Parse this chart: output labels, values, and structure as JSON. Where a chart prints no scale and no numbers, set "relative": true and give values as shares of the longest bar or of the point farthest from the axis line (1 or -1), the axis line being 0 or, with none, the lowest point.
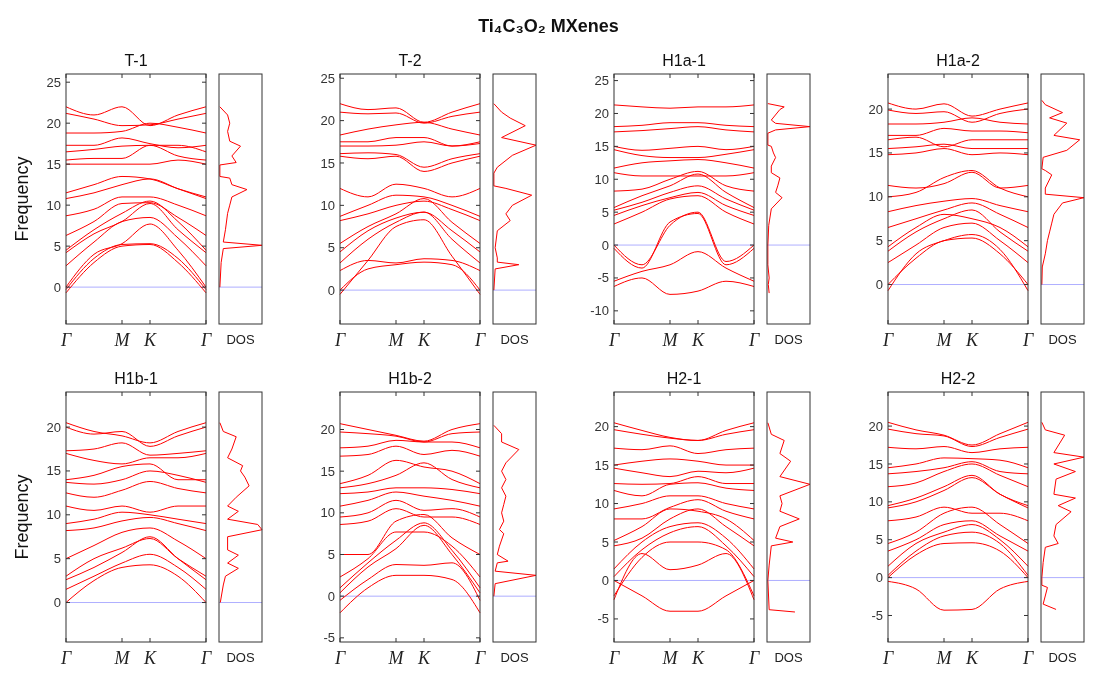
{
  "chart_data": [
    {
      "type": "line",
      "title": "T-1",
      "ylabel": "Frequency",
      "annotations": [
        "Ti₄C₃O₂ MXenes"
      ],
      "color": "#ff0000",
      "categories": [
        "Γ",
        null,
        "M",
        "K",
        null,
        "Γ"
      ],
      "ylim": [
        -4.5,
        26
      ],
      "yticks": [
        0,
        5,
        10,
        15,
        20,
        25
      ],
      "ref_lines": [
        {
          "axis": "y",
          "value": 0,
          "color": "#9999ff"
        }
      ],
      "series": [
        {
          "values": [
            -0.7,
            3,
            5,
            5.2,
            3,
            -0.7
          ]
        },
        {
          "values": [
            -0.3,
            3.5,
            5.2,
            5.3,
            3.5,
            -0.3
          ]
        },
        {
          "values": [
            0,
            4,
            5.3,
            7.7,
            4.5,
            0
          ]
        },
        {
          "values": [
            2.6,
            5.5,
            8,
            8.5,
            6,
            2.6
          ]
        },
        {
          "values": [
            4.2,
            6.5,
            8,
            10.2,
            7,
            4.2
          ]
        },
        {
          "values": [
            4.5,
            7,
            9,
            10.5,
            8,
            4.5
          ]
        },
        {
          "values": [
            6.3,
            8,
            10.2,
            10.3,
            8.5,
            6.3
          ]
        },
        {
          "values": [
            8.7,
            9.5,
            11,
            11,
            10,
            8.7
          ]
        },
        {
          "values": [
            10.8,
            11.5,
            12.5,
            13.2,
            12,
            10.8
          ]
        },
        {
          "values": [
            11.5,
            12.5,
            13.5,
            13.2,
            12,
            11
          ]
        },
        {
          "values": [
            15,
            15,
            15,
            15,
            15.5,
            15
          ]
        },
        {
          "values": [
            15.5,
            15.7,
            15.7,
            17.3,
            16,
            15.5
          ]
        },
        {
          "values": [
            16.5,
            16.8,
            17.2,
            17.3,
            17.3,
            16.5
          ]
        },
        {
          "values": [
            17.3,
            17.3,
            18.2,
            17.5,
            17,
            17.3
          ]
        },
        {
          "values": [
            18.8,
            18.8,
            19,
            20,
            19.5,
            18.8
          ]
        },
        {
          "values": [
            21.2,
            20.5,
            19.7,
            19.8,
            20.5,
            21.2
          ]
        },
        {
          "values": [
            22,
            21,
            22,
            19.7,
            21,
            22
          ]
        }
      ]
    },
    {
      "type": "line",
      "orientation": "horizontal",
      "relative": true,
      "xlabel": "DOS",
      "color": "#ff0000",
      "ylim": [
        -4.5,
        26
      ],
      "ref_lines": [
        {
          "axis": "y",
          "value": 0,
          "color": "#9999ff"
        }
      ],
      "x": [
        0,
        3,
        4.7,
        5.1,
        5.5,
        7,
        9,
        10,
        11,
        11.9,
        12.5,
        13.3,
        13.5,
        14.9,
        15.2,
        16,
        17.2,
        17.8,
        19,
        20,
        21,
        22
      ],
      "values": [
        0.02,
        0.05,
        0.1,
        1,
        0.1,
        0.15,
        0.2,
        0.25,
        0.3,
        0.65,
        0.3,
        0.25,
        0.02,
        0.02,
        0.4,
        0.3,
        0.5,
        0.25,
        0.2,
        0.25,
        0.2,
        0.02
      ]
    },
    {
      "type": "line",
      "title": "T-2",
      "color": "#ff0000",
      "categories": [
        "Γ",
        null,
        "M",
        "K",
        null,
        "Γ"
      ],
      "ylim": [
        -4,
        25.5
      ],
      "yticks": [
        0,
        5,
        10,
        15,
        20,
        25
      ],
      "ref_lines": [
        {
          "axis": "y",
          "value": 0,
          "color": "#9999ff"
        }
      ],
      "series": [
        {
          "values": [
            0,
            2.5,
            3,
            3.3,
            3,
            0
          ]
        },
        {
          "values": [
            2.3,
            3.5,
            3.2,
            3.7,
            3.5,
            2.3
          ]
        },
        {
          "values": [
            -0.5,
            3.5,
            7.5,
            8.3,
            4,
            -0.5
          ]
        },
        {
          "values": [
            3.2,
            6,
            8,
            9.2,
            6,
            3.2
          ]
        },
        {
          "values": [
            4.5,
            7,
            8.5,
            9.2,
            7,
            4.5
          ]
        },
        {
          "values": [
            5.5,
            7.5,
            9,
            10.8,
            8,
            5.5
          ]
        },
        {
          "values": [
            8.2,
            9,
            10,
            10.5,
            9.5,
            8.2
          ]
        },
        {
          "values": [
            8.7,
            10,
            11.2,
            11,
            10,
            8.7
          ]
        },
        {
          "values": [
            12,
            11,
            12.5,
            12,
            11,
            12
          ]
        },
        {
          "values": [
            15.8,
            15.5,
            15.8,
            14,
            15,
            15.8
          ]
        },
        {
          "values": [
            16.1,
            16.2,
            16,
            14.5,
            15.5,
            16.1
          ]
        },
        {
          "values": [
            17,
            17,
            17.1,
            17.5,
            17,
            17.3
          ]
        },
        {
          "values": [
            17.5,
            17.5,
            18,
            18,
            17,
            17.5
          ]
        },
        {
          "values": [
            18.3,
            19,
            19.5,
            19.8,
            19,
            18.3
          ]
        },
        {
          "values": [
            21,
            20.8,
            20.9,
            19.7,
            20.5,
            21
          ]
        },
        {
          "values": [
            22,
            21.3,
            21.5,
            19.8,
            21,
            22
          ]
        }
      ]
    },
    {
      "type": "line",
      "orientation": "horizontal",
      "relative": true,
      "xlabel": "DOS",
      "color": "#ff0000",
      "ylim": [
        -4,
        25.5
      ],
      "ref_lines": [
        {
          "axis": "y",
          "value": 0,
          "color": "#9999ff"
        }
      ],
      "x": [
        0,
        2.5,
        3,
        3.3,
        3.8,
        5,
        7,
        8.2,
        9,
        10,
        11.2,
        12,
        12.3,
        13.8,
        14.5,
        15.9,
        17.1,
        18,
        19.4,
        20.3,
        21,
        22
      ],
      "values": [
        0.02,
        0.05,
        0.6,
        0.1,
        0.1,
        0.05,
        0.1,
        0.4,
        0.3,
        0.45,
        0.9,
        0.3,
        0.02,
        0.02,
        0.1,
        0.45,
        1,
        0.2,
        0.75,
        0.4,
        0.2,
        0.02
      ]
    },
    {
      "type": "line",
      "title": "H1a-1",
      "color": "#ff0000",
      "categories": [
        "Γ",
        null,
        "M",
        "K",
        null,
        "Γ"
      ],
      "ylim": [
        -12,
        26
      ],
      "yticks": [
        -10,
        -5,
        0,
        5,
        10,
        15,
        20,
        25
      ],
      "ref_lines": [
        {
          "axis": "y",
          "value": 0,
          "color": "#9999ff"
        }
      ],
      "series": [
        {
          "values": [
            -6.3,
            -5,
            -7.5,
            -7,
            -5.5,
            -6.3
          ]
        },
        {
          "values": [
            -5.5,
            -4,
            -3,
            -1,
            -3.5,
            -5.5
          ]
        },
        {
          "values": [
            0,
            -3,
            3,
            5,
            -2.5,
            0
          ]
        },
        {
          "values": [
            -0.5,
            -3.5,
            3.5,
            4.8,
            -3,
            -0.5
          ]
        },
        {
          "values": [
            3.2,
            5,
            7,
            7.5,
            5,
            3.2
          ]
        },
        {
          "values": [
            4.5,
            6,
            7.2,
            8,
            6,
            4.5
          ]
        },
        {
          "values": [
            5.3,
            6.5,
            8,
            9,
            7,
            5.3
          ]
        },
        {
          "values": [
            5.7,
            7.5,
            9,
            10.8,
            8,
            5.7
          ]
        },
        {
          "values": [
            8.2,
            8.5,
            10,
            11.2,
            9,
            8.2
          ]
        },
        {
          "values": [
            11,
            10.5,
            10.5,
            10.5,
            10.5,
            11
          ]
        },
        {
          "values": [
            11.7,
            12.5,
            12.8,
            13,
            12.5,
            11.7
          ]
        },
        {
          "values": [
            14.5,
            13.6,
            13.3,
            13.3,
            13.8,
            14.5
          ]
        },
        {
          "values": [
            15,
            14.4,
            14.7,
            15,
            14.5,
            15
          ]
        },
        {
          "values": [
            17.2,
            17.4,
            17.7,
            18,
            17.5,
            17.2
          ]
        },
        {
          "values": [
            18,
            18.2,
            18.6,
            18.6,
            18.2,
            18
          ]
        },
        {
          "values": [
            21.3,
            21,
            20.8,
            21,
            21,
            21.3
          ]
        }
      ]
    },
    {
      "type": "line",
      "orientation": "horizontal",
      "relative": true,
      "xlabel": "DOS",
      "color": "#ff0000",
      "ylim": [
        -12,
        26
      ],
      "ref_lines": [
        {
          "axis": "y",
          "value": 0,
          "color": "#9999ff"
        }
      ],
      "x": [
        -7.3,
        -6,
        -5,
        -3,
        0,
        3,
        5.5,
        7.2,
        8,
        9,
        10.2,
        11,
        12,
        13.3,
        14,
        15,
        15.2,
        17,
        17.5,
        18,
        18.5,
        19,
        20.6,
        21,
        21.5
      ],
      "values": [
        0.05,
        0.03,
        0.05,
        0.02,
        0.02,
        0.04,
        0.1,
        0.35,
        0.2,
        0.25,
        0.3,
        0.1,
        0.1,
        0.2,
        0.15,
        0.1,
        0.02,
        0.02,
        0.2,
        1,
        0.2,
        0.1,
        0.3,
        0.4,
        0.02
      ]
    },
    {
      "type": "line",
      "title": "H1a-2",
      "color": "#ff0000",
      "categories": [
        "Γ",
        null,
        "M",
        "K",
        null,
        "Γ"
      ],
      "ylim": [
        -4.5,
        24
      ],
      "yticks": [
        0,
        5,
        10,
        15,
        20
      ],
      "ref_lines": [
        {
          "axis": "y",
          "value": 0,
          "color": "#9999ff"
        }
      ],
      "series": [
        {
          "values": [
            0,
            3,
            5,
            5.3,
            3.5,
            0
          ]
        },
        {
          "values": [
            -0.7,
            3.5,
            5,
            5.7,
            4,
            -0.7
          ]
        },
        {
          "values": [
            2.5,
            4.5,
            6.5,
            7,
            5,
            2.5
          ]
        },
        {
          "values": [
            3.8,
            6,
            7.5,
            8.5,
            6,
            3.8
          ]
        },
        {
          "values": [
            4.3,
            6.5,
            8,
            7.5,
            6.5,
            4.3
          ]
        },
        {
          "values": [
            6.5,
            7.5,
            8.5,
            9.3,
            8,
            6.5
          ]
        },
        {
          "values": [
            8.3,
            9,
            9.5,
            9.8,
            9,
            8.3
          ]
        },
        {
          "values": [
            10,
            10.5,
            12.2,
            13,
            11,
            10
          ]
        },
        {
          "values": [
            11.3,
            11,
            11.5,
            12.8,
            11,
            11.3
          ]
        },
        {
          "values": [
            14.8,
            15,
            15.5,
            14.8,
            15,
            14.8
          ]
        },
        {
          "values": [
            15.5,
            15.7,
            16,
            15.5,
            15.5,
            15.5
          ]
        },
        {
          "values": [
            16.5,
            16.8,
            15.7,
            16.5,
            16.5,
            16.5
          ]
        },
        {
          "values": [
            17,
            17,
            17.8,
            17.5,
            17.5,
            17.3
          ]
        },
        {
          "values": [
            18.3,
            18.3,
            18.5,
            19,
            18.5,
            18.3
          ]
        },
        {
          "values": [
            19.9,
            19.5,
            19.7,
            18.5,
            19.5,
            20
          ]
        },
        {
          "values": [
            20.7,
            20,
            20.6,
            19.2,
            20,
            20.7
          ]
        }
      ]
    },
    {
      "type": "line",
      "orientation": "horizontal",
      "relative": true,
      "xlabel": "DOS",
      "color": "#ff0000",
      "ylim": [
        -4.5,
        24
      ],
      "ref_lines": [
        {
          "axis": "y",
          "value": 0,
          "color": "#9999ff"
        }
      ],
      "x": [
        0,
        2,
        3.5,
        5,
        6,
        7,
        8,
        9.3,
        9.9,
        10.3,
        11,
        12.5,
        13,
        13.2,
        14.5,
        15.3,
        16.5,
        17,
        18.4,
        19,
        19.6,
        20.5,
        21
      ],
      "values": [
        0.02,
        0.03,
        0.1,
        0.15,
        0.2,
        0.25,
        0.3,
        0.5,
        1,
        0.1,
        0.1,
        0.25,
        0.1,
        0.02,
        0.05,
        0.6,
        0.9,
        0.3,
        0.6,
        0.2,
        0.5,
        0.1,
        0.02
      ]
    },
    {
      "type": "line",
      "title": "H1b-1",
      "ylabel": "Frequency",
      "color": "#ff0000",
      "categories": [
        "Γ",
        null,
        "M",
        "K",
        null,
        "Γ"
      ],
      "ylim": [
        -4.5,
        24
      ],
      "yticks": [
        0,
        5,
        10,
        15,
        20
      ],
      "ref_lines": [
        {
          "axis": "y",
          "value": 0,
          "color": "#9999ff"
        }
      ],
      "series": [
        {
          "values": [
            0,
            2.5,
            4,
            4.3,
            3,
            0
          ]
        },
        {
          "values": [
            1.5,
            3,
            4.5,
            5.5,
            4,
            1.5
          ]
        },
        {
          "values": [
            2.6,
            4,
            5.7,
            7.5,
            5,
            2.6
          ]
        },
        {
          "values": [
            3,
            5,
            6.2,
            7.3,
            5,
            3
          ]
        },
        {
          "values": [
            5,
            6.5,
            8,
            8.5,
            7,
            5
          ]
        },
        {
          "values": [
            8.2,
            8.5,
            9.3,
            9.7,
            9,
            8.2
          ]
        },
        {
          "values": [
            9,
            9.5,
            10.3,
            10,
            9.5,
            9
          ]
        },
        {
          "values": [
            11,
            10.5,
            11,
            10.3,
            11,
            11
          ]
        },
        {
          "values": [
            12.5,
            12,
            12.8,
            13.8,
            13,
            12.5
          ]
        },
        {
          "values": [
            13.7,
            13.5,
            14,
            15,
            14.5,
            13.7
          ]
        },
        {
          "values": [
            14,
            14.5,
            15.5,
            15.8,
            14,
            14
          ]
        },
        {
          "values": [
            17,
            16.2,
            15.8,
            16.5,
            16.5,
            17
          ]
        },
        {
          "values": [
            17.3,
            17.5,
            18.2,
            16.8,
            17,
            17.3
          ]
        },
        {
          "values": [
            20,
            19.2,
            19.5,
            17.8,
            19,
            20
          ]
        },
        {
          "values": [
            20.5,
            19.5,
            19,
            18.2,
            19.5,
            20.5
          ]
        }
      ]
    },
    {
      "type": "line",
      "orientation": "horizontal",
      "relative": true,
      "xlabel": "DOS",
      "color": "#ff0000",
      "ylim": [
        -4.5,
        24
      ],
      "ref_lines": [
        {
          "axis": "y",
          "value": 0,
          "color": "#9999ff"
        }
      ],
      "x": [
        0,
        2,
        3,
        3.9,
        4.5,
        5.4,
        6,
        7.5,
        8.3,
        8.9,
        9.5,
        10.4,
        11,
        12,
        13.3,
        14.3,
        15,
        15.6,
        16.5,
        17.5,
        18.9,
        19.5,
        20.5
      ],
      "values": [
        0.03,
        0.1,
        0.15,
        0.45,
        0.2,
        0.45,
        0.2,
        0.2,
        1,
        0.9,
        0.2,
        0.45,
        0.2,
        0.4,
        0.7,
        0.6,
        0.5,
        0.55,
        0.2,
        0.3,
        0.4,
        0.1,
        0.02
      ]
    },
    {
      "type": "line",
      "title": "H1b-2",
      "color": "#ff0000",
      "categories": [
        "Γ",
        null,
        "M",
        "K",
        null,
        "Γ"
      ],
      "ylim": [
        -5.5,
        24.5
      ],
      "yticks": [
        -5,
        0,
        5,
        10,
        15,
        20
      ],
      "ref_lines": [
        {
          "axis": "y",
          "value": 0,
          "color": "#9999ff"
        }
      ],
      "series": [
        {
          "values": [
            -2,
            1,
            2.5,
            2.5,
            2,
            -2
          ]
        },
        {
          "values": [
            -0.5,
            2,
            3.8,
            3.7,
            4,
            -0.5
          ]
        },
        {
          "values": [
            0.4,
            3.5,
            5.7,
            8.5,
            5,
            0.4
          ]
        },
        {
          "values": [
            1,
            4,
            6.7,
            8.8,
            5.5,
            1
          ]
        },
        {
          "values": [
            2.3,
            4.5,
            7.7,
            7.7,
            6,
            2.3
          ]
        },
        {
          "values": [
            5,
            5,
            9,
            9.8,
            7,
            5
          ]
        },
        {
          "values": [
            8.6,
            9,
            10.5,
            9.5,
            9.5,
            8.6
          ]
        },
        {
          "values": [
            9.5,
            10,
            11.5,
            10.3,
            10.5,
            9.5
          ]
        },
        {
          "values": [
            10.8,
            11.5,
            12.5,
            12,
            11.5,
            10.8
          ]
        },
        {
          "values": [
            12.3,
            12.5,
            13,
            13,
            12.8,
            12.3
          ]
        },
        {
          "values": [
            13,
            13.5,
            14.5,
            16,
            14,
            13
          ]
        },
        {
          "values": [
            13.5,
            14.5,
            16.3,
            15.5,
            15,
            13.5
          ]
        },
        {
          "values": [
            16.8,
            17,
            18,
            17,
            17.5,
            16.8
          ]
        },
        {
          "values": [
            17.8,
            18,
            18.7,
            18.5,
            18.5,
            17.8
          ]
        },
        {
          "values": [
            19.7,
            19.5,
            19.2,
            18.5,
            19.5,
            19.7
          ]
        },
        {
          "values": [
            20.7,
            20,
            19.3,
            18.6,
            20,
            20.7
          ]
        }
      ]
    },
    {
      "type": "line",
      "orientation": "horizontal",
      "relative": true,
      "xlabel": "DOS",
      "color": "#ff0000",
      "ylim": [
        -5.5,
        24.5
      ],
      "ref_lines": [
        {
          "axis": "y",
          "value": 0,
          "color": "#9999ff"
        }
      ],
      "x": [
        0,
        1.5,
        2.5,
        3,
        4,
        4.2,
        5,
        6,
        7.5,
        8,
        9,
        10,
        11,
        12,
        13,
        14,
        15,
        16,
        17.6,
        18.5,
        19.5,
        20.5
      ],
      "values": [
        0.02,
        0.05,
        1,
        0.05,
        0.1,
        0.35,
        0.1,
        0.15,
        0.25,
        0.15,
        0.25,
        0.2,
        0.25,
        0.3,
        0.2,
        0.3,
        0.2,
        0.3,
        0.6,
        0.2,
        0.2,
        0.02
      ]
    },
    {
      "type": "line",
      "title": "H2-1",
      "color": "#ff0000",
      "categories": [
        "Γ",
        null,
        "M",
        "K",
        null,
        "Γ"
      ],
      "ylim": [
        -8,
        24.5
      ],
      "yticks": [
        -5,
        0,
        5,
        10,
        15,
        20
      ],
      "ref_lines": [
        {
          "axis": "y",
          "value": 0,
          "color": "#9999ff"
        }
      ],
      "series": [
        {
          "values": [
            0,
            -2,
            -4,
            -4,
            -2,
            0
          ]
        },
        {
          "values": [
            -2.5,
            3.5,
            1.4,
            2,
            3.5,
            -2.5
          ]
        },
        {
          "values": [
            -2,
            3,
            5,
            5,
            4,
            -2
          ]
        },
        {
          "values": [
            0.5,
            4,
            6.2,
            7,
            4.5,
            0.5
          ]
        },
        {
          "values": [
            1.5,
            5,
            7,
            7.5,
            5.5,
            1.5
          ]
        },
        {
          "values": [
            4.5,
            5.5,
            8,
            9.3,
            7,
            4.5
          ]
        },
        {
          "values": [
            5.2,
            7,
            9.3,
            9,
            8,
            5.2
          ]
        },
        {
          "values": [
            8,
            8,
            9.5,
            10.5,
            9,
            8
          ]
        },
        {
          "values": [
            9.3,
            10,
            11,
            11,
            10,
            9.3
          ]
        },
        {
          "values": [
            11.7,
            11,
            12.5,
            12.7,
            12,
            11.7
          ]
        },
        {
          "values": [
            12.6,
            12.5,
            12.6,
            13.5,
            12.6,
            12.6
          ]
        },
        {
          "values": [
            14.6,
            14,
            13.5,
            14.2,
            14,
            14.6
          ]
        },
        {
          "values": [
            15,
            15.5,
            15.8,
            15.5,
            15,
            15
          ]
        },
        {
          "values": [
            17.2,
            17,
            17.5,
            16.5,
            17,
            17.2
          ]
        },
        {
          "values": [
            19.6,
            19,
            18.5,
            18.2,
            19,
            19.6
          ]
        },
        {
          "values": [
            20.5,
            19.5,
            18.6,
            18.2,
            19.5,
            20.5
          ]
        }
      ]
    },
    {
      "type": "line",
      "orientation": "horizontal",
      "relative": true,
      "xlabel": "DOS",
      "color": "#ff0000",
      "ylim": [
        -8,
        24.5
      ],
      "ref_lines": [
        {
          "axis": "y",
          "value": 0,
          "color": "#9999ff"
        }
      ],
      "x": [
        -4.1,
        -3.8,
        0,
        2,
        4.5,
        5,
        5.5,
        7,
        8,
        9,
        10,
        11,
        12.5,
        13.5,
        15.5,
        16.5,
        18.2,
        19,
        20.5
      ],
      "values": [
        0.65,
        0.05,
        0.02,
        0.05,
        0.1,
        0.6,
        0.2,
        0.3,
        0.75,
        0.3,
        0.35,
        0.3,
        1,
        0.3,
        0.55,
        0.3,
        0.4,
        0.1,
        0.02
      ]
    },
    {
      "type": "line",
      "title": "H2-2",
      "color": "#ff0000",
      "categories": [
        "Γ",
        null,
        "M",
        "K",
        null,
        "Γ"
      ],
      "ylim": [
        -8.5,
        24.5
      ],
      "yticks": [
        -5,
        0,
        5,
        10,
        15,
        20
      ],
      "ref_lines": [
        {
          "axis": "y",
          "value": 0,
          "color": "#9999ff"
        }
      ],
      "series": [
        {
          "values": [
            -0.5,
            -1.5,
            -4.3,
            -4.2,
            -1.5,
            -0.5
          ]
        },
        {
          "values": [
            0,
            3,
            4.5,
            4.6,
            3.5,
            0
          ]
        },
        {
          "values": [
            0.3,
            3.5,
            5.5,
            6,
            4.5,
            0.3
          ]
        },
        {
          "values": [
            1.5,
            4.5,
            6,
            7,
            5,
            1.5
          ]
        },
        {
          "values": [
            3.5,
            5,
            7,
            7.5,
            5.5,
            3.5
          ]
        },
        {
          "values": [
            4.5,
            6,
            8.5,
            9.3,
            7,
            4.5
          ]
        },
        {
          "values": [
            7.5,
            8,
            9.3,
            8.5,
            8.5,
            7.5
          ]
        },
        {
          "values": [
            9.2,
            10,
            11.5,
            13.2,
            11,
            9.2
          ]
        },
        {
          "values": [
            9.5,
            10.5,
            12,
            13.5,
            11,
            9.5
          ]
        },
        {
          "values": [
            12,
            12.5,
            14,
            15,
            13.5,
            12
          ]
        },
        {
          "values": [
            13.7,
            14,
            14.5,
            15.3,
            14,
            13.7
          ]
        },
        {
          "values": [
            14.5,
            15,
            15.8,
            15.7,
            15.5,
            14.5
          ]
        },
        {
          "values": [
            17.2,
            17,
            17.3,
            16.5,
            17,
            17.2
          ]
        },
        {
          "values": [
            19.6,
            19,
            18.7,
            17.3,
            18.5,
            19.6
          ]
        },
        {
          "values": [
            20.5,
            19.5,
            18.8,
            17.5,
            19,
            20.5
          ]
        }
      ]
    },
    {
      "type": "line",
      "orientation": "horizontal",
      "relative": true,
      "xlabel": "DOS",
      "color": "#ff0000",
      "ylim": [
        -8.5,
        24.5
      ],
      "ref_lines": [
        {
          "axis": "y",
          "value": 0,
          "color": "#9999ff"
        }
      ],
      "x": [
        -4.2,
        -3.5,
        -1.3,
        -1,
        0,
        2,
        4,
        4.5,
        5.5,
        7,
        8.7,
        9.5,
        10.5,
        11,
        13,
        14,
        15,
        15.9,
        16.5,
        18.8,
        19.5,
        20.5
      ],
      "values": [
        0.35,
        0.05,
        0.15,
        0.02,
        0.02,
        0.05,
        0.1,
        0.4,
        0.3,
        0.35,
        0.7,
        0.4,
        0.8,
        0.3,
        0.35,
        0.8,
        0.3,
        1,
        0.3,
        0.55,
        0.1,
        0.02
      ]
    }
  ]
}
